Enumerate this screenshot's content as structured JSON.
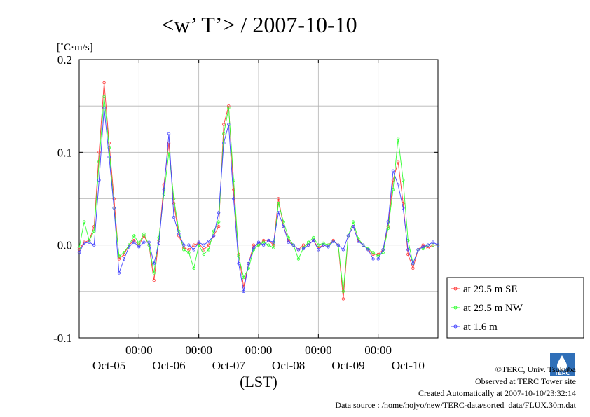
{
  "chart_data": {
    "type": "line",
    "title": "<w’ T’> / 2007-10-10",
    "ylabel": "[˚C·m/s]",
    "xlabel": "(LST)",
    "ylim": [
      -0.1,
      0.2
    ],
    "xlim": [
      0,
      6
    ],
    "y_ticks": [
      "0.2",
      "0.1",
      "0.0",
      "-0.1"
    ],
    "y_tick_values": [
      0.2,
      0.1,
      0.0,
      -0.1
    ],
    "x_tick_values": [
      1,
      2,
      3,
      4,
      5
    ],
    "x_ticks_time": [
      "00:00",
      "00:00",
      "00:00",
      "00:00",
      "00:00"
    ],
    "x_ticks_date": [
      "Oct-05",
      "Oct-06",
      "Oct-07",
      "Oct-08",
      "Oct-09",
      "Oct-10"
    ],
    "grid": true,
    "legend_position": "right",
    "series": [
      {
        "name": "at 29.5 m SE",
        "color": "#ff3b3b",
        "x": [
          0,
          0.083,
          0.167,
          0.25,
          0.333,
          0.417,
          0.5,
          0.583,
          0.667,
          0.75,
          0.833,
          0.917,
          1,
          1.083,
          1.167,
          1.25,
          1.333,
          1.417,
          1.5,
          1.583,
          1.667,
          1.75,
          1.833,
          1.917,
          2,
          2.083,
          2.167,
          2.25,
          2.333,
          2.417,
          2.5,
          2.583,
          2.667,
          2.75,
          2.833,
          2.917,
          3,
          3.083,
          3.167,
          3.25,
          3.333,
          3.417,
          3.5,
          3.583,
          3.667,
          3.75,
          3.833,
          3.917,
          4,
          4.083,
          4.167,
          4.25,
          4.333,
          4.417,
          4.5,
          4.583,
          4.667,
          4.75,
          4.833,
          4.917,
          5,
          5.083,
          5.167,
          5.25,
          5.333,
          5.417,
          5.5,
          5.583,
          5.667,
          5.75,
          5.833,
          5.917,
          6
        ],
        "y": [
          -0.005,
          0.003,
          0.005,
          0.02,
          0.1,
          0.175,
          0.11,
          0.05,
          -0.015,
          -0.01,
          0.0,
          0.005,
          0.0,
          0.01,
          0.0,
          -0.038,
          0.005,
          0.065,
          0.11,
          0.045,
          0.01,
          -0.003,
          -0.005,
          0.0,
          0.002,
          -0.005,
          0.0,
          0.01,
          0.02,
          0.13,
          0.15,
          0.06,
          -0.01,
          -0.045,
          -0.02,
          0.0,
          0.0,
          0.005,
          0.005,
          0.0,
          0.05,
          0.02,
          0.005,
          0.0,
          -0.005,
          0.0,
          0.0,
          0.005,
          -0.003,
          0.0,
          0.0,
          0.005,
          0.0,
          -0.058,
          0.01,
          0.02,
          0.005,
          0.0,
          -0.005,
          -0.01,
          -0.01,
          -0.005,
          0.02,
          0.07,
          0.09,
          0.045,
          -0.01,
          -0.025,
          -0.005,
          0.0,
          -0.003,
          0.0,
          0.0
        ]
      },
      {
        "name": "at 29.5 m NW",
        "color": "#33ff33",
        "x": [
          0,
          0.083,
          0.167,
          0.25,
          0.333,
          0.417,
          0.5,
          0.583,
          0.667,
          0.75,
          0.833,
          0.917,
          1,
          1.083,
          1.167,
          1.25,
          1.333,
          1.417,
          1.5,
          1.583,
          1.667,
          1.75,
          1.833,
          1.917,
          2,
          2.083,
          2.167,
          2.25,
          2.333,
          2.417,
          2.5,
          2.583,
          2.667,
          2.75,
          2.833,
          2.917,
          3,
          3.083,
          3.167,
          3.25,
          3.333,
          3.417,
          3.5,
          3.583,
          3.667,
          3.75,
          3.833,
          3.917,
          4,
          4.083,
          4.167,
          4.25,
          4.333,
          4.417,
          4.5,
          4.583,
          4.667,
          4.75,
          4.833,
          4.917,
          5,
          5.083,
          5.167,
          5.25,
          5.333,
          5.417,
          5.5,
          5.583,
          5.667,
          5.75,
          5.833,
          5.917,
          6
        ],
        "y": [
          -0.003,
          0.025,
          0.005,
          0.015,
          0.09,
          0.16,
          0.105,
          0.04,
          -0.012,
          -0.008,
          0.0,
          0.01,
          0.002,
          0.012,
          0.0,
          -0.03,
          0.008,
          0.055,
          0.1,
          0.05,
          0.015,
          -0.005,
          -0.008,
          -0.025,
          0.0,
          -0.01,
          -0.005,
          0.015,
          0.025,
          0.12,
          0.148,
          0.07,
          -0.012,
          -0.035,
          -0.025,
          -0.005,
          0.0,
          0.003,
          0.0,
          -0.003,
          0.045,
          0.025,
          0.008,
          0.0,
          -0.015,
          -0.003,
          0.003,
          0.008,
          0.0,
          0.002,
          0.0,
          0.004,
          0.0,
          -0.05,
          0.01,
          0.025,
          0.007,
          0.0,
          -0.004,
          -0.008,
          -0.012,
          -0.008,
          0.018,
          0.06,
          0.115,
          0.07,
          0.005,
          -0.02,
          -0.005,
          -0.004,
          0.0,
          0.0,
          0.0
        ]
      },
      {
        "name": "at 1.6 m",
        "color": "#4444ff",
        "x": [
          0,
          0.083,
          0.167,
          0.25,
          0.333,
          0.417,
          0.5,
          0.583,
          0.667,
          0.75,
          0.833,
          0.917,
          1,
          1.083,
          1.167,
          1.25,
          1.333,
          1.417,
          1.5,
          1.583,
          1.667,
          1.75,
          1.833,
          1.917,
          2,
          2.083,
          2.167,
          2.25,
          2.333,
          2.417,
          2.5,
          2.583,
          2.667,
          2.75,
          2.833,
          2.917,
          3,
          3.083,
          3.167,
          3.25,
          3.333,
          3.417,
          3.5,
          3.583,
          3.667,
          3.75,
          3.833,
          3.917,
          4,
          4.083,
          4.167,
          4.25,
          4.333,
          4.417,
          4.5,
          4.583,
          4.667,
          4.75,
          4.833,
          4.917,
          5,
          5.083,
          5.167,
          5.25,
          5.333,
          5.417,
          5.5,
          5.583,
          5.667,
          5.75,
          5.833,
          5.917,
          6
        ],
        "y": [
          -0.008,
          0.002,
          0.003,
          0.0,
          0.07,
          0.148,
          0.095,
          0.04,
          -0.03,
          -0.015,
          -0.002,
          0.003,
          -0.002,
          0.003,
          0.003,
          -0.02,
          0.002,
          0.06,
          0.12,
          0.03,
          0.012,
          0.0,
          0.0,
          -0.005,
          0.003,
          0.0,
          0.004,
          0.01,
          0.035,
          0.11,
          0.13,
          0.05,
          -0.02,
          -0.05,
          -0.02,
          -0.003,
          0.003,
          0.0,
          0.005,
          0.003,
          0.035,
          0.02,
          0.003,
          0.0,
          -0.005,
          -0.004,
          0.0,
          0.005,
          -0.005,
          0.0,
          -0.002,
          0.004,
          0.0,
          -0.005,
          0.01,
          0.02,
          0.004,
          0.0,
          -0.005,
          -0.015,
          -0.015,
          -0.005,
          0.025,
          0.08,
          0.065,
          0.04,
          -0.005,
          -0.02,
          -0.005,
          -0.002,
          0.0,
          0.003,
          0.0
        ]
      }
    ]
  },
  "footer": {
    "copyright": "©TERC, Univ. Tsukuba",
    "observed": "Observed at TERC Tower site",
    "created": "Created Automatically at 2007-10-10/23:32:14",
    "source": "Data source : /home/hojyo/new/TERC-data/sorted_data/FLUX.30m.dat",
    "logo_text": "TERC"
  }
}
